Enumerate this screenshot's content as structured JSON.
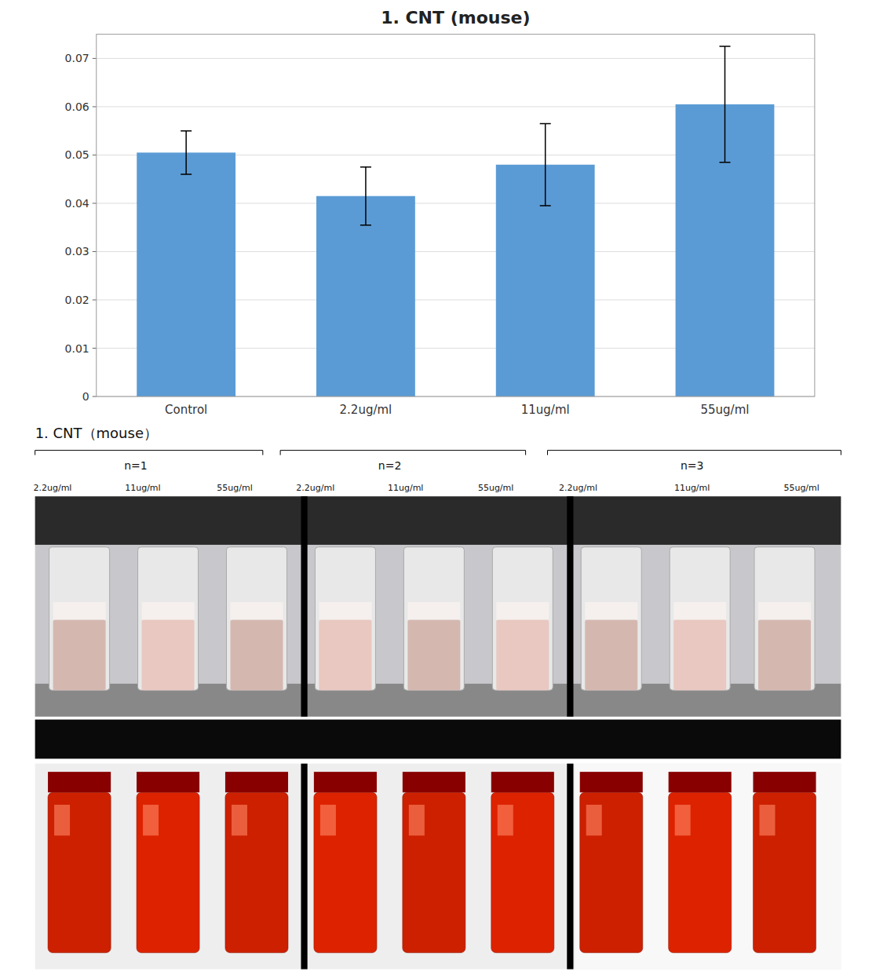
{
  "chart_data": {
    "type": "bar",
    "title": "1. CNT (mouse)",
    "subtitle": "1.  CNT（mouse）",
    "categories": [
      "Control",
      "2.2ug/ml",
      "11ug/ml",
      "55ug/ml"
    ],
    "values": [
      0.0505,
      0.0415,
      0.048,
      0.0605
    ],
    "errors": [
      0.0045,
      0.006,
      0.0085,
      0.012
    ],
    "color": "#5B9BD5",
    "ylim": [
      0,
      0.075
    ],
    "yticks": [
      0,
      0.01,
      0.02,
      0.03,
      0.04,
      0.05,
      0.06,
      0.07
    ],
    "grid": true,
    "annotations": [
      "n=1",
      "n=2",
      "n=3",
      "2.2ug/ml",
      "11ug/ml",
      "55ug/ml",
      "2.2ug/ml",
      "11ug/ml",
      "55ug/ml",
      "2.2ug/ml",
      "11ug/ml",
      "55ug/ml"
    ]
  }
}
